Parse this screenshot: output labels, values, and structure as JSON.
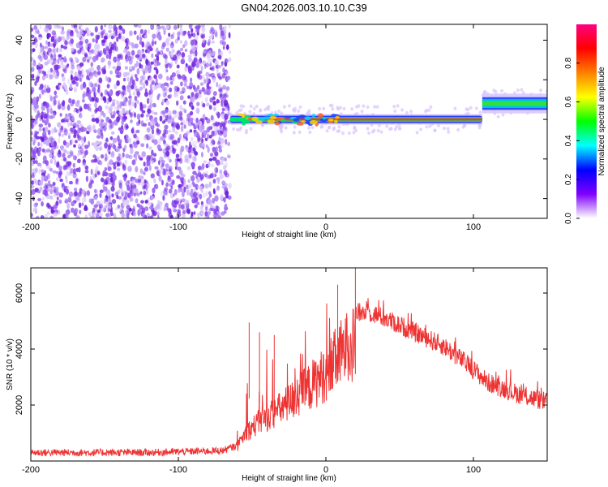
{
  "title": "GN04.2026.003.10.10.C39",
  "colors": {
    "signal_line": "#ee3333",
    "noise_purple": "#7a3ce0",
    "axis": "#000000"
  },
  "chart_data": [
    {
      "type": "heatmap",
      "name": "spectrogram",
      "xlabel": "Height of straight line (km)",
      "ylabel": "Frequency (Hz)",
      "xlim": [
        -200,
        150
      ],
      "ylim": [
        -50,
        48
      ],
      "x_ticks": [
        -200,
        -100,
        0,
        100
      ],
      "y_ticks": [
        -40,
        -20,
        0,
        20,
        40
      ],
      "colorbar": {
        "label": "Normalized spectral amplitude",
        "range": [
          0,
          1
        ],
        "ticks": [
          0.0,
          0.2,
          0.4,
          0.6,
          0.8
        ],
        "colormap": [
          "#ffffff",
          "#7f00ff",
          "#0000ff",
          "#00ffff",
          "#00ff00",
          "#ffff00",
          "#ff8000",
          "#ff0000",
          "#ff0080"
        ]
      },
      "segments": [
        {
          "label": "noise",
          "x_range": [
            -200,
            -65
          ],
          "freq_hz": null,
          "amplitude": 0.15
        },
        {
          "label": "tone",
          "x_range": [
            -65,
            106
          ],
          "freq_hz": 0,
          "amplitude": 0.9
        },
        {
          "label": "tone-shifted",
          "x_range": [
            106,
            150
          ],
          "freq_hz": 8,
          "amplitude": 0.55
        }
      ]
    },
    {
      "type": "line",
      "name": "snr",
      "xlabel": "Height of straight line (km)",
      "ylabel": "SNR (10 * v/v)",
      "xlim": [
        -200,
        150
      ],
      "ylim": [
        0,
        6900
      ],
      "x_ticks": [
        -200,
        -100,
        0,
        100
      ],
      "y_ticks": [
        2000,
        4000,
        6000
      ],
      "envelope": {
        "x": [
          -200,
          -120,
          -70,
          -60,
          -55,
          -45,
          -30,
          -15,
          0,
          10,
          20,
          30,
          40,
          60,
          80,
          95,
          110,
          130,
          150
        ],
        "y": [
          250,
          250,
          320,
          500,
          1200,
          1700,
          2300,
          3000,
          3800,
          4600,
          5300,
          5300,
          5100,
          4600,
          4100,
          3500,
          2800,
          2400,
          2100
        ]
      }
    }
  ]
}
